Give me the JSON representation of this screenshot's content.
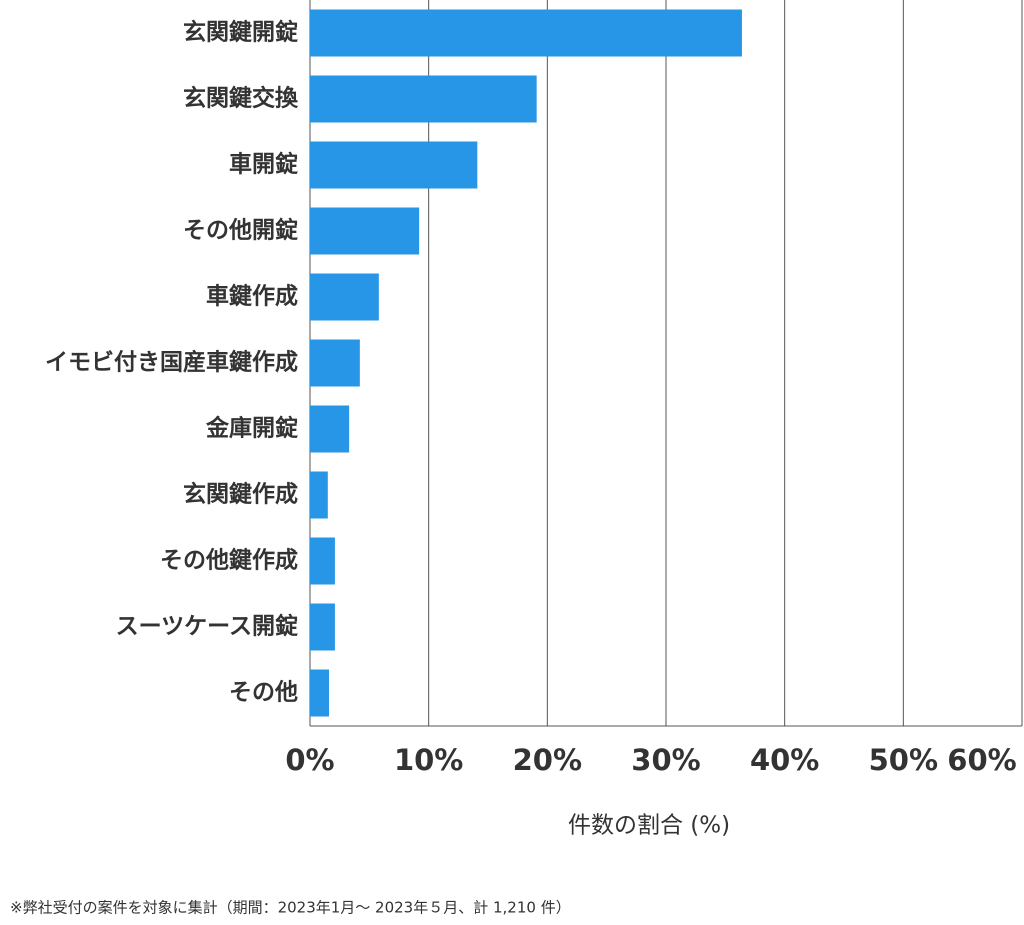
{
  "chart_data": {
    "type": "bar",
    "orientation": "horizontal",
    "categories": [
      "玄関鍵開錠",
      "玄関鍵交換",
      "車開錠",
      "その他開錠",
      "車鍵作成",
      "イモビ付き国産車鍵作成",
      "金庫開錠",
      "玄関鍵作成",
      "その他鍵作成",
      "スーツケース開錠",
      "その他"
    ],
    "values": [
      36.4,
      19.1,
      14.1,
      9.2,
      5.8,
      4.2,
      3.3,
      1.5,
      2.1,
      2.1,
      1.6
    ],
    "color": "#2896e6",
    "xlabel": "件数の割合 (%)",
    "xlim": [
      0,
      60
    ],
    "xticks": [
      {
        "value": 0,
        "label": "0%"
      },
      {
        "value": 10,
        "label": "10%"
      },
      {
        "value": 20,
        "label": "20%"
      },
      {
        "value": 30,
        "label": "30%"
      },
      {
        "value": 40,
        "label": "40%"
      },
      {
        "value": 50,
        "label": "50%"
      },
      {
        "value": 60,
        "label": "60%"
      }
    ],
    "grid": true,
    "note": "※弊社受付の案件を対象に集計（期間：2023年1月～ 2023年５月、計 1,210 件）"
  }
}
